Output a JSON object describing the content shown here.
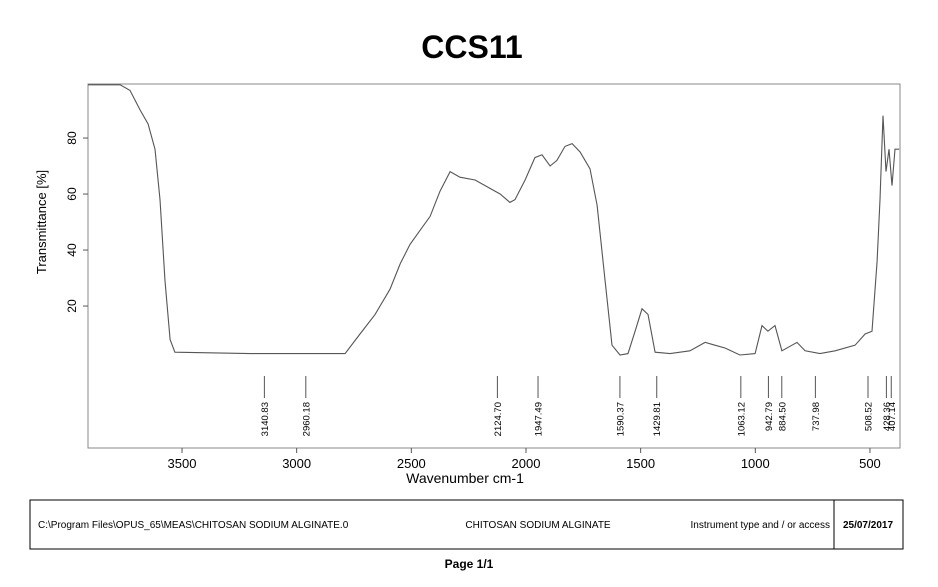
{
  "chart_data": {
    "type": "line",
    "title": "CCS11",
    "xlabel": "Wavenumber cm-1",
    "ylabel": "Transmittance [%]",
    "x": [
      3910,
      3770,
      3727,
      3683,
      3648,
      3618,
      3596,
      3574,
      3552,
      3531,
      3203,
      2789,
      2724,
      2658,
      2593,
      2549,
      2506,
      2462,
      2418,
      2375,
      2331,
      2288,
      2222,
      2157,
      2113,
      2070,
      2048,
      2004,
      1961,
      1930,
      1895,
      1865,
      1830,
      1799,
      1764,
      1721,
      1690,
      1655,
      1625,
      1590,
      1555,
      1524,
      1494,
      1468,
      1437,
      1372,
      1285,
      1219,
      1176,
      1132,
      1067,
      1001,
      971,
      945,
      914,
      884,
      840,
      818,
      783,
      718,
      652,
      565,
      521,
      491,
      469,
      456,
      443,
      430,
      417,
      404,
      391,
      373
    ],
    "values": [
      99,
      99,
      97,
      90,
      85,
      76,
      58,
      29,
      8,
      3.5,
      3,
      3,
      10,
      17,
      26,
      35,
      42,
      47,
      52,
      61,
      68,
      66,
      65,
      62,
      60,
      57,
      58,
      65,
      73,
      74,
      70,
      72,
      77,
      78,
      75,
      69,
      56,
      29,
      6,
      2.5,
      3,
      11,
      19,
      17,
      3.5,
      3,
      4,
      7,
      6,
      5,
      2.5,
      3,
      13,
      11,
      13,
      4,
      6,
      7,
      4,
      3,
      4,
      6,
      10,
      11,
      36,
      58,
      88,
      68,
      76,
      63,
      76,
      76
    ],
    "color": "#555555",
    "xlim": [
      3910,
      369
    ],
    "ylim": [
      -30.7,
      99.3
    ],
    "xticks": [
      3500,
      3000,
      2500,
      2000,
      1500,
      1000,
      500
    ],
    "yticks": [
      20,
      40,
      60,
      80
    ],
    "peaks": [
      3140.83,
      2960.18,
      {
        "value": 2124.7,
        "label": "2124.70"
      },
      1947.49,
      1590.37,
      1429.81,
      1063.12,
      942.79,
      {
        "value": 884.5,
        "label": "884.50"
      },
      737.98,
      508.52,
      428.36,
      407.14
    ]
  },
  "footer": {
    "path": "C:\\Program Files\\OPUS_65\\MEAS\\CHITOSAN SODIUM ALGINATE.0",
    "sample": "CHITOSAN SODIUM ALGINATE",
    "instrument": "Instrument type and / or access",
    "date": "25/07/2017"
  },
  "page": "Page 1/1"
}
